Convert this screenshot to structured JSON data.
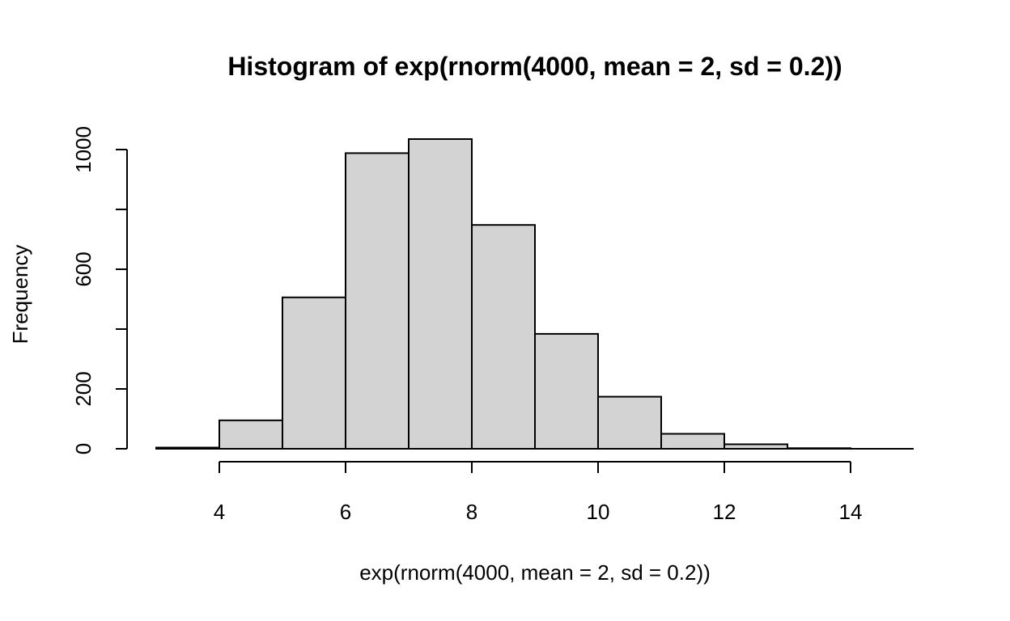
{
  "chart_data": {
    "type": "bar",
    "title": "Histogram of exp(rnorm(4000, mean = 2, sd = 0.2))",
    "xlabel": "exp(rnorm(4000, mean = 2, sd = 0.2))",
    "ylabel": "Frequency",
    "bins": [
      {
        "start": 3,
        "end": 4,
        "count": 4
      },
      {
        "start": 4,
        "end": 5,
        "count": 95
      },
      {
        "start": 5,
        "end": 6,
        "count": 506
      },
      {
        "start": 6,
        "end": 7,
        "count": 988
      },
      {
        "start": 7,
        "end": 8,
        "count": 1035
      },
      {
        "start": 8,
        "end": 9,
        "count": 748
      },
      {
        "start": 9,
        "end": 10,
        "count": 384
      },
      {
        "start": 10,
        "end": 11,
        "count": 174
      },
      {
        "start": 11,
        "end": 12,
        "count": 50
      },
      {
        "start": 12,
        "end": 13,
        "count": 15
      },
      {
        "start": 13,
        "end": 14,
        "count": 2
      },
      {
        "start": 14,
        "end": 15,
        "count": 0
      }
    ],
    "xlim": [
      3,
      15
    ],
    "ylim": [
      0,
      1035
    ],
    "x_ticks": [
      4,
      6,
      8,
      10,
      12,
      14
    ],
    "y_ticks": [
      0,
      200,
      600,
      1000
    ],
    "y_minor_ticks": [
      400,
      800
    ],
    "bar_color": "#d3d3d3",
    "grid": false,
    "legend": "none"
  }
}
